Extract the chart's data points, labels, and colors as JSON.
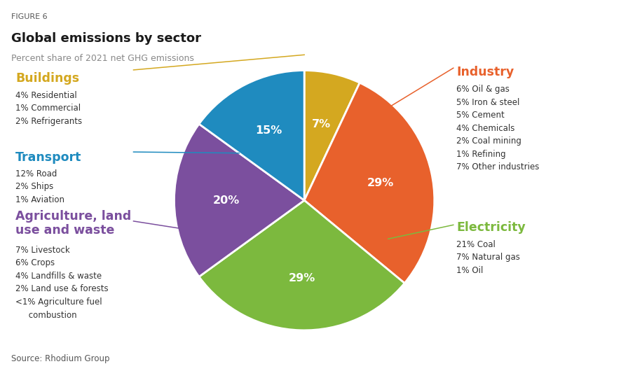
{
  "figure_label": "FIGURE 6",
  "title": "Global emissions by sector",
  "subtitle": "Percent share of 2021 net GHG emissions",
  "source": "Source: Rhodium Group",
  "pie_values": [
    29,
    29,
    20,
    15,
    7
  ],
  "pie_colors": [
    "#E8612C",
    "#7CB93E",
    "#7B4F9E",
    "#1F8BBF",
    "#D4A820"
  ],
  "pie_pct_labels": [
    "29%",
    "29%",
    "20%",
    "15%",
    "7%"
  ],
  "industry_label": "Industry",
  "industry_color": "#E8612C",
  "industry_details": "6% Oil & gas\n5% Iron & steel\n5% Cement\n4% Chemicals\n2% Coal mining\n1% Refining\n7% Other industries",
  "electricity_label": "Electricity",
  "electricity_color": "#7CB93E",
  "electricity_details": "21% Coal\n7% Natural gas\n1% Oil",
  "agriculture_label": "Agriculture, land\nuse and waste",
  "agriculture_color": "#7B4F9E",
  "agriculture_details": "7% Livestock\n6% Crops\n4% Landfills & waste\n2% Land use & forests\n<1% Agriculture fuel\n     combustion",
  "transport_label": "Transport",
  "transport_color": "#1F8BBF",
  "transport_details": "12% Road\n2% Ships\n1% Aviation",
  "buildings_label": "Buildings",
  "buildings_color": "#D4A820",
  "buildings_details": "4% Residential\n1% Commercial\n2% Refrigerants",
  "text_color": "#333333",
  "bg_color": "#FFFFFF"
}
